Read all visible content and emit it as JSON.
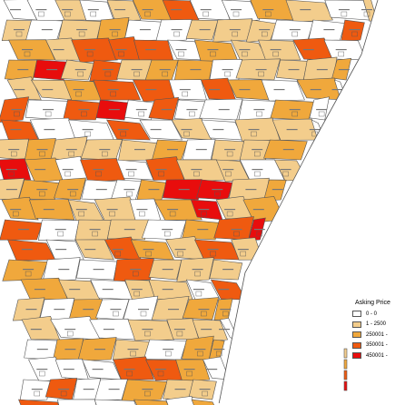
{
  "legend": {
    "title": "Asking Price",
    "items": [
      {
        "label": "0 - 0",
        "color": "#ffffff"
      },
      {
        "label": "1 - 2500",
        "color": "#f3cd8c"
      },
      {
        "label": "250001 -",
        "color": "#f0a83c"
      },
      {
        "label": "350001 -",
        "color": "#ef5a10"
      },
      {
        "label": "450001 -",
        "color": "#e80d0d"
      }
    ]
  },
  "map": {
    "outline": "#555555",
    "region_colors": [
      "#ffffff",
      "#f3cd8c",
      "#f0a83c",
      "#ef5a10",
      "#e80d0d"
    ]
  }
}
